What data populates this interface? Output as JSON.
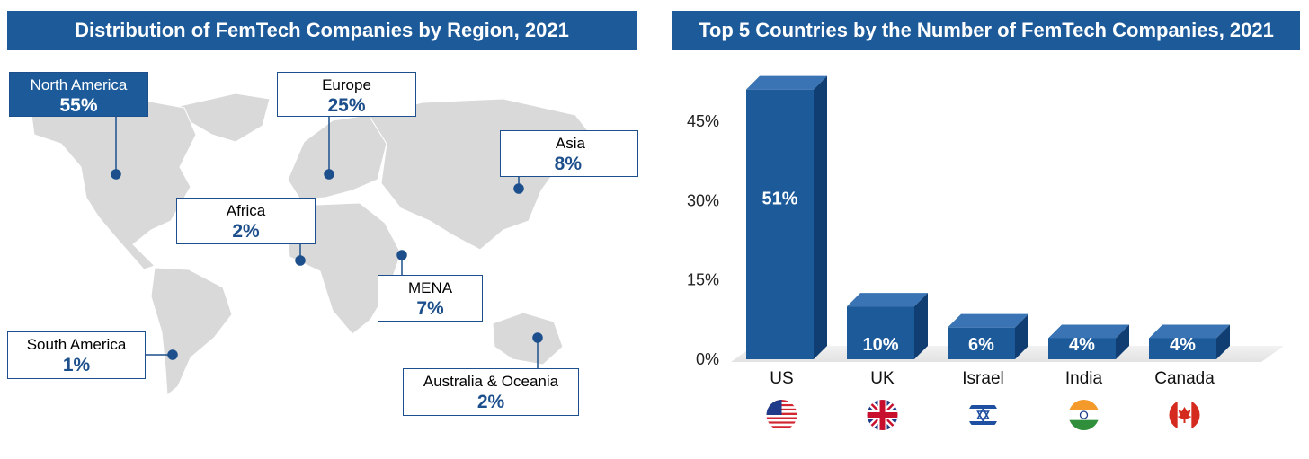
{
  "map_panel": {
    "title": "Distribution of FemTech Companies by Region, 2021",
    "regions": [
      {
        "name": "North America",
        "value": "55%"
      },
      {
        "name": "Europe",
        "value": "25%"
      },
      {
        "name": "Asia",
        "value": "8%"
      },
      {
        "name": "Africa",
        "value": "2%"
      },
      {
        "name": "MENA",
        "value": "7%"
      },
      {
        "name": "South America",
        "value": "1%"
      },
      {
        "name": "Australia & Oceania",
        "value": "2%"
      }
    ]
  },
  "chart_data": {
    "type": "bar",
    "title": "Top 5 Countries by the Number of FemTech Companies, 2021",
    "categories": [
      "US",
      "UK",
      "Israel",
      "India",
      "Canada"
    ],
    "values": [
      51,
      10,
      6,
      4,
      4
    ],
    "data_labels": [
      "51%",
      "10%",
      "6%",
      "4%",
      "4%"
    ],
    "ylim": [
      0,
      45
    ],
    "yticks": [
      0,
      15,
      30,
      45
    ],
    "ytick_labels": [
      "0%",
      "15%",
      "30%",
      "45%"
    ],
    "bar_color": "#1c5a9a",
    "flags": [
      "us-flag-icon",
      "uk-flag-icon",
      "israel-flag-icon",
      "india-flag-icon",
      "canada-flag-icon"
    ]
  },
  "colors": {
    "accent": "#1c5a9a",
    "land": "#d9d9d9"
  }
}
